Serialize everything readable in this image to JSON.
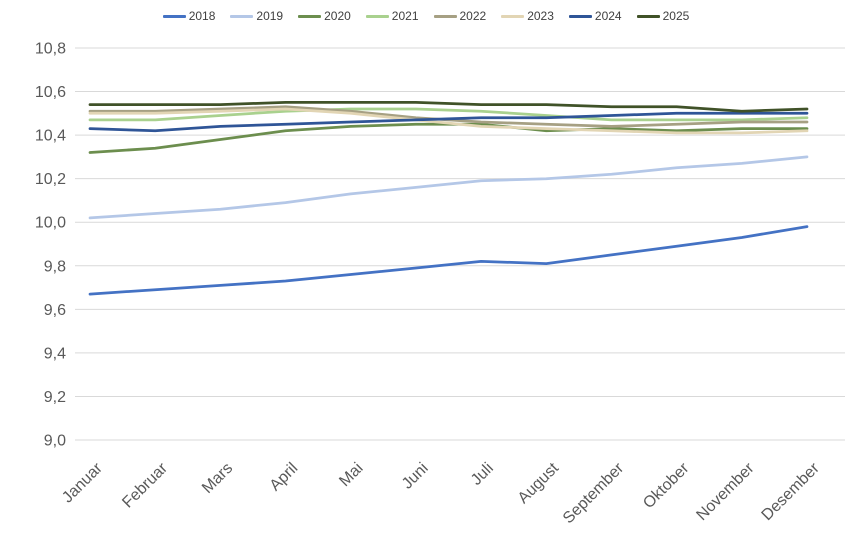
{
  "chart_data": {
    "type": "line",
    "title": "",
    "xlabel": "",
    "ylabel": "",
    "grid": true,
    "legend_position": "top",
    "decimal_separator": ",",
    "axis_text_color": "#595959",
    "gridline_color": "#d9d9d9",
    "categories": [
      "Januar",
      "Februar",
      "Mars",
      "April",
      "Mai",
      "Juni",
      "Juli",
      "August",
      "September",
      "Oktober",
      "November",
      "Desember"
    ],
    "ylim": [
      9.0,
      10.8
    ],
    "yticks": [
      {
        "value": 10.8,
        "label": "10,8"
      },
      {
        "value": 10.6,
        "label": "10,6"
      },
      {
        "value": 10.4,
        "label": "10,4"
      },
      {
        "value": 10.2,
        "label": "10,2"
      },
      {
        "value": 10.0,
        "label": "10,0"
      },
      {
        "value": 9.8,
        "label": "9,8"
      },
      {
        "value": 9.6,
        "label": "9,6"
      },
      {
        "value": 9.4,
        "label": "9,4"
      },
      {
        "value": 9.2,
        "label": "9,2"
      },
      {
        "value": 9.0,
        "label": "9,0"
      }
    ],
    "series": [
      {
        "name": "2018",
        "color": "#4472c4",
        "values": [
          9.67,
          9.69,
          9.71,
          9.73,
          9.76,
          9.79,
          9.82,
          9.81,
          9.85,
          9.89,
          9.93,
          9.98
        ]
      },
      {
        "name": "2019",
        "color": "#b4c7e7",
        "values": [
          10.02,
          10.04,
          10.06,
          10.09,
          10.13,
          10.16,
          10.19,
          10.2,
          10.22,
          10.25,
          10.27,
          10.3
        ]
      },
      {
        "name": "2020",
        "color": "#6c8e4e",
        "values": [
          10.32,
          10.34,
          10.38,
          10.42,
          10.44,
          10.45,
          10.45,
          10.42,
          10.43,
          10.42,
          10.43,
          10.43
        ]
      },
      {
        "name": "2021",
        "color": "#a9d18e",
        "values": [
          10.47,
          10.47,
          10.49,
          10.51,
          10.52,
          10.52,
          10.51,
          10.49,
          10.47,
          10.47,
          10.47,
          10.48
        ]
      },
      {
        "name": "2022",
        "color": "#a6a083",
        "values": [
          10.51,
          10.51,
          10.52,
          10.53,
          10.51,
          10.48,
          10.46,
          10.45,
          10.44,
          10.45,
          10.46,
          10.46
        ]
      },
      {
        "name": "2023",
        "color": "#e2d5b4",
        "values": [
          10.5,
          10.5,
          10.51,
          10.52,
          10.5,
          10.47,
          10.44,
          10.43,
          10.42,
          10.41,
          10.41,
          10.42
        ]
      },
      {
        "name": "2024",
        "color": "#2f5597",
        "values": [
          10.43,
          10.42,
          10.44,
          10.45,
          10.46,
          10.47,
          10.48,
          10.48,
          10.49,
          10.5,
          10.5,
          10.5
        ]
      },
      {
        "name": "2025",
        "color": "#405228",
        "values": [
          10.54,
          10.54,
          10.54,
          10.55,
          10.55,
          10.55,
          10.54,
          10.54,
          10.53,
          10.53,
          10.51,
          10.52
        ]
      }
    ]
  }
}
